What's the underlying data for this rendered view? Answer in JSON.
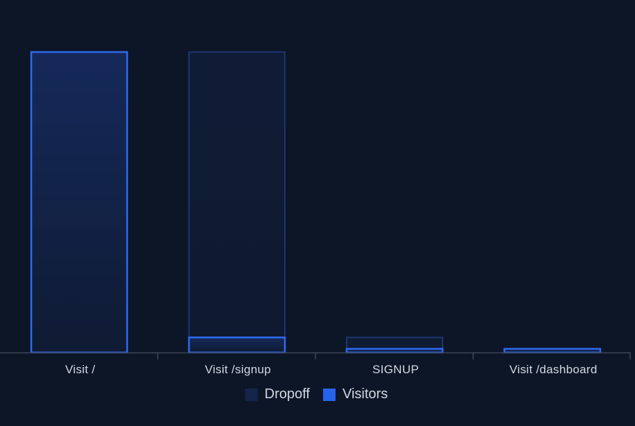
{
  "chart_data": {
    "type": "bar",
    "stacked": true,
    "categories": [
      "Visit /",
      "Visit /signup",
      "SIGNUP",
      "Visit /dashboard"
    ],
    "series": [
      {
        "name": "Visitors",
        "values": [
          100,
          5,
          1.2,
          1.2
        ]
      },
      {
        "name": "Dropoff",
        "values": [
          0,
          95,
          3.8,
          0
        ]
      }
    ],
    "ylim": [
      0,
      100
    ],
    "grid": false,
    "legend_position": "bottom-center",
    "colors": {
      "background": "#0d1627",
      "visitors": "#2563eb",
      "visitors_stroke": "#2f6bf0",
      "dropoff": "#132549",
      "dropoff_stroke": "#1c3570",
      "axis": "#3d4656"
    }
  }
}
